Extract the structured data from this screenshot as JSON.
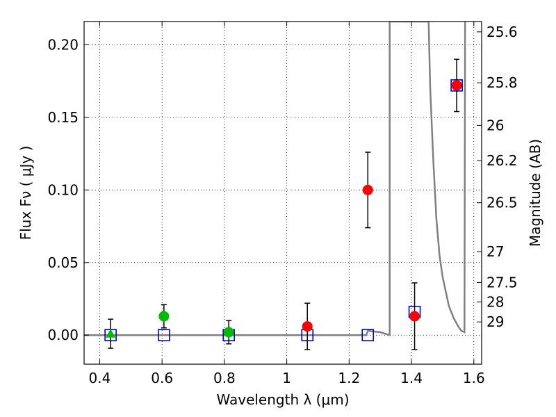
{
  "chart_data": {
    "type": "scatter",
    "title": "",
    "xlabel": "Wavelength  λ (μm)",
    "ylabel": "Flux  Fν  ( μJy )",
    "y2label": "Magnitude (AB)",
    "xlim": [
      0.35,
      1.625
    ],
    "ylim": [
      -0.02,
      0.216
    ],
    "grid": true,
    "x_ticks": [
      0.4,
      0.6,
      0.8,
      1.0,
      1.2,
      1.4,
      1.6
    ],
    "x_tick_labels": [
      "0.4",
      "0.6",
      "0.8",
      "1",
      "1.2",
      "1.4",
      "1.6"
    ],
    "y_ticks": [
      0.0,
      0.05,
      0.1,
      0.15,
      0.2
    ],
    "y_tick_labels": [
      "0.00",
      "0.05",
      "0.10",
      "0.15",
      "0.20"
    ],
    "y2_ticks": [
      {
        "label": "25.6",
        "flux": 0.2089
      },
      {
        "label": "25.8",
        "flux": 0.1738
      },
      {
        "label": "26",
        "flux": 0.1445
      },
      {
        "label": "26.2",
        "flux": 0.1202
      },
      {
        "label": "26.5",
        "flux": 0.0912
      },
      {
        "label": "27",
        "flux": 0.0575
      },
      {
        "label": "27.5",
        "flux": 0.0363
      },
      {
        "label": "28",
        "flux": 0.0229
      },
      {
        "label": "29",
        "flux": 0.0091
      }
    ],
    "colors": {
      "model": "#808080",
      "square": "#0000cc",
      "green": "#00bb00",
      "red": "#ff0000",
      "errorbar": "#000000"
    },
    "series": [
      {
        "marker": "square",
        "points": [
          {
            "x": 0.435,
            "y": 0.0
          },
          {
            "x": 0.606,
            "y": 0.0
          },
          {
            "x": 0.814,
            "y": 0.0
          },
          {
            "x": 1.066,
            "y": 0.0
          },
          {
            "x": 1.26,
            "y": 0.0
          },
          {
            "x": 1.41,
            "y": 0.016
          },
          {
            "x": 1.545,
            "y": 0.172
          }
        ]
      },
      {
        "marker": "triangle",
        "color": "green",
        "points": [
          {
            "x": 0.435,
            "y": 0.001,
            "err": 0.01
          }
        ]
      },
      {
        "marker": "circle",
        "color": "green",
        "points": [
          {
            "x": 0.606,
            "y": 0.013,
            "err": 0.008
          },
          {
            "x": 0.814,
            "y": 0.002,
            "err": 0.008
          }
        ]
      },
      {
        "marker": "circle",
        "color": "red",
        "points": [
          {
            "x": 1.066,
            "y": 0.006,
            "err": 0.016
          },
          {
            "x": 1.26,
            "y": 0.1,
            "err": 0.026
          },
          {
            "x": 1.41,
            "y": 0.013,
            "err": 0.023
          },
          {
            "x": 1.545,
            "y": 0.172,
            "err": 0.018
          }
        ]
      }
    ],
    "model_curve": [
      [
        0.35,
        0.0
      ],
      [
        1.255,
        0.0
      ],
      [
        1.26,
        0.003
      ],
      [
        1.3,
        0.002
      ],
      [
        1.33,
        0.0
      ],
      [
        1.33,
        0.216
      ],
      [
        1.455,
        0.216
      ],
      [
        1.46,
        0.17
      ],
      [
        1.47,
        0.12
      ],
      [
        1.48,
        0.08
      ],
      [
        1.49,
        0.055
      ],
      [
        1.5,
        0.04
      ],
      [
        1.51,
        0.03
      ],
      [
        1.52,
        0.02
      ],
      [
        1.535,
        0.012
      ],
      [
        1.55,
        0.006
      ],
      [
        1.56,
        0.003
      ],
      [
        1.57,
        0.002
      ],
      [
        1.572,
        0.216
      ]
    ]
  }
}
